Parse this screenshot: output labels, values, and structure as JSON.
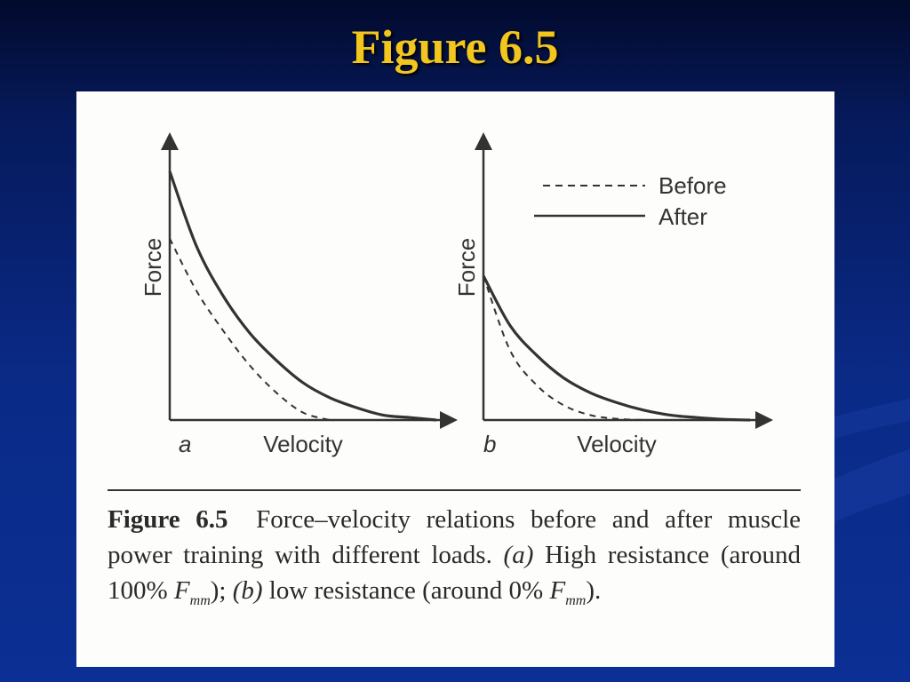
{
  "slide": {
    "title": "Figure 6.5"
  },
  "chart_data": [
    {
      "type": "line",
      "panel_label": "a",
      "xlabel": "Velocity",
      "ylabel": "Force",
      "series": [
        {
          "name": "Before",
          "style": "dashed",
          "x": [
            0,
            0.1,
            0.2,
            0.3,
            0.4,
            0.5,
            0.6
          ],
          "y": [
            0.73,
            0.52,
            0.36,
            0.22,
            0.11,
            0.03,
            0
          ]
        },
        {
          "name": "After",
          "style": "solid",
          "x": [
            0,
            0.1,
            0.2,
            0.3,
            0.4,
            0.5,
            0.6,
            0.7,
            0.8,
            0.9,
            1.0
          ],
          "y": [
            1.0,
            0.7,
            0.5,
            0.35,
            0.24,
            0.15,
            0.09,
            0.05,
            0.02,
            0.01,
            0
          ]
        }
      ]
    },
    {
      "type": "line",
      "panel_label": "b",
      "xlabel": "Velocity",
      "ylabel": "Force",
      "legend": {
        "placement": "top-right",
        "entries": [
          "Before",
          "After"
        ]
      },
      "series": [
        {
          "name": "Before",
          "style": "dashed",
          "x": [
            0,
            0.1,
            0.2,
            0.3,
            0.4,
            0.5,
            0.6
          ],
          "y": [
            0.58,
            0.28,
            0.14,
            0.06,
            0.02,
            0.005,
            0
          ]
        },
        {
          "name": "After",
          "style": "solid",
          "x": [
            0,
            0.1,
            0.2,
            0.3,
            0.4,
            0.5,
            0.6,
            0.7,
            0.8,
            0.9,
            1.0
          ],
          "y": [
            0.58,
            0.38,
            0.26,
            0.17,
            0.11,
            0.07,
            0.04,
            0.02,
            0.01,
            0.003,
            0
          ]
        }
      ]
    }
  ],
  "caption": {
    "label": "Figure 6.5",
    "text1": "Force–velocity relations before and after muscle power training with different loads.",
    "part_a": "(a)",
    "text2": "High resistance (around 100%",
    "fmm_f": "F",
    "fmm_sub": "mm",
    "part_b_sep": ");",
    "part_b": "(b)",
    "text3": "low resistance (around 0%",
    "end": ")."
  }
}
